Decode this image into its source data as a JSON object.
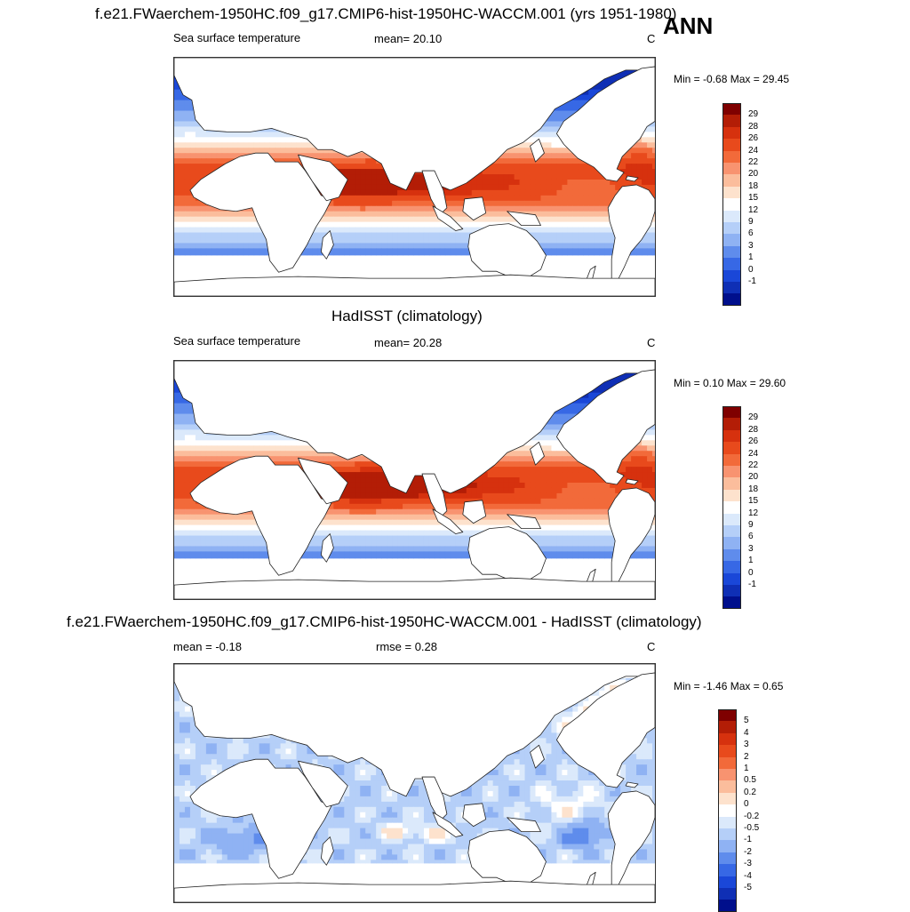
{
  "season": "ANN",
  "panels": [
    {
      "title": "f.e21.FWaerchem-1950HC.f09_g17.CMIP6-hist-1950HC-WACCM.001 (yrs 1951-1980)",
      "left_label": "Sea surface temperature",
      "mid_label": "mean=  20.10",
      "units": "C",
      "minmax": "Min =  -0.68 Max =  29.45",
      "kind": "model"
    },
    {
      "title": "HadISST (climatology)",
      "left_label": "Sea surface temperature",
      "mid_label": "mean=  20.28",
      "units": "C",
      "minmax": "Min =   0.10 Max =  29.60",
      "kind": "obs"
    },
    {
      "title": "f.e21.FWaerchem-1950HC.f09_g17.CMIP6-hist-1950HC-WACCM.001 - HadISST (climatology)",
      "left_label": "mean =  -0.18",
      "mid_label": "rmse =   0.28",
      "units": "C",
      "minmax": "Min =  -1.46 Max =   0.65",
      "kind": "diff"
    }
  ],
  "sst_colorbar": {
    "labels": [
      "29",
      "28",
      "26",
      "24",
      "22",
      "20",
      "18",
      "15",
      "12",
      "9",
      "6",
      "3",
      "1",
      "0",
      "-1"
    ],
    "colors": [
      "#7f0000",
      "#b31d06",
      "#d6310e",
      "#e84a1c",
      "#f26a3a",
      "#f89370",
      "#fbbd9c",
      "#fde2cd",
      "#ffffff",
      "#dbe9fb",
      "#b5cff8",
      "#8fb2f3",
      "#5f8cec",
      "#3768e5",
      "#1a47d8",
      "#0f2fb5",
      "#000f8c"
    ]
  },
  "diff_colorbar": {
    "labels": [
      "5",
      "4",
      "3",
      "2",
      "1",
      "0.5",
      "0.2",
      "0",
      "-0.2",
      "-0.5",
      "-1",
      "-2",
      "-3",
      "-4",
      "-5"
    ],
    "colors": [
      "#7f0000",
      "#b31d06",
      "#d6310e",
      "#e84a1c",
      "#f26a3a",
      "#f89370",
      "#fbbd9c",
      "#fde2cd",
      "#ffffff",
      "#dbe9fb",
      "#b5cff8",
      "#8fb2f3",
      "#5f8cec",
      "#3768e5",
      "#1a47d8",
      "#0f2fb5",
      "#000f8c"
    ]
  }
}
